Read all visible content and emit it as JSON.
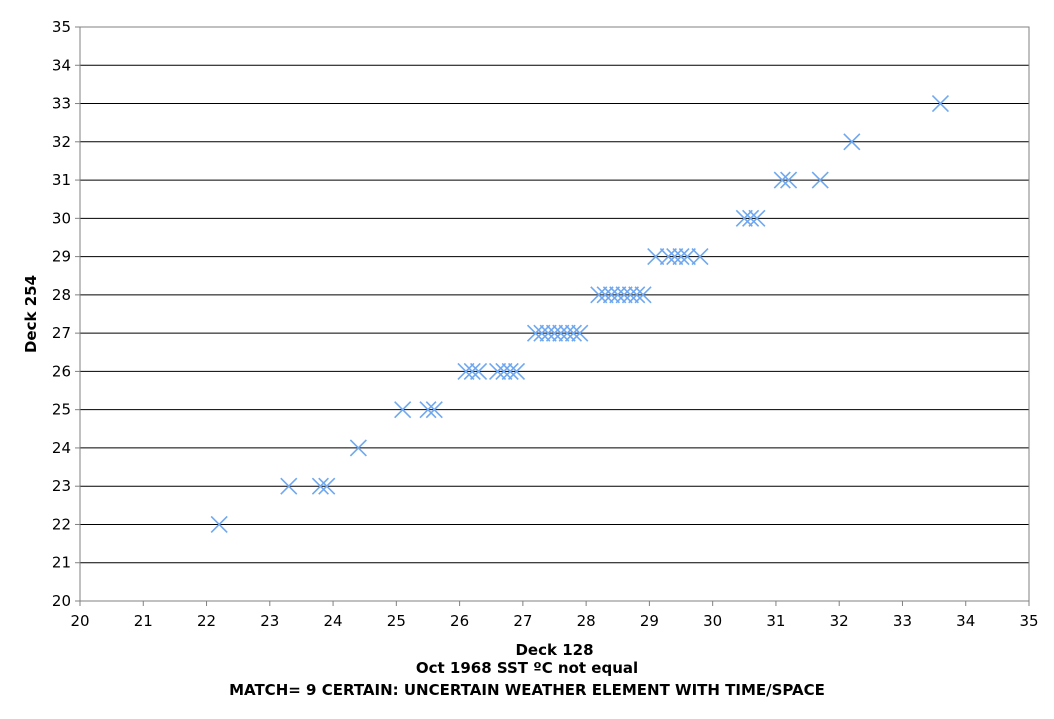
{
  "chart_data": {
    "type": "scatter",
    "xlabel": "Deck 128",
    "ylabel": "Deck 254",
    "subtitle": "Oct 1968 SST ºC not equal",
    "caption": "MATCH= 9 CERTAIN: UNCERTAIN WEATHER ELEMENT WITH TIME/SPACE",
    "xlim": [
      20,
      35
    ],
    "ylim": [
      20,
      35
    ],
    "xticks": [
      "20",
      "21",
      "22",
      "23",
      "24",
      "25",
      "26",
      "27",
      "28",
      "29",
      "30",
      "31",
      "32",
      "33",
      "34",
      "35"
    ],
    "yticks": [
      "20",
      "21",
      "22",
      "23",
      "24",
      "25",
      "26",
      "27",
      "28",
      "29",
      "30",
      "31",
      "32",
      "33",
      "34",
      "35"
    ],
    "grid": "horizontal",
    "legend": "none",
    "marker": "x",
    "marker_color": "#6fa8f0",
    "points": [
      [
        22.2,
        22
      ],
      [
        23.3,
        23
      ],
      [
        23.8,
        23
      ],
      [
        23.9,
        23
      ],
      [
        24.4,
        24
      ],
      [
        25.1,
        25
      ],
      [
        25.5,
        25
      ],
      [
        25.6,
        25
      ],
      [
        26.1,
        26
      ],
      [
        26.2,
        26
      ],
      [
        26.3,
        26
      ],
      [
        26.6,
        26
      ],
      [
        26.7,
        26
      ],
      [
        26.8,
        26
      ],
      [
        26.9,
        26
      ],
      [
        27.2,
        27
      ],
      [
        27.3,
        27
      ],
      [
        27.4,
        27
      ],
      [
        27.5,
        27
      ],
      [
        27.6,
        27
      ],
      [
        27.7,
        27
      ],
      [
        27.8,
        27
      ],
      [
        27.9,
        27
      ],
      [
        28.2,
        28
      ],
      [
        28.3,
        28
      ],
      [
        28.4,
        28
      ],
      [
        28.5,
        28
      ],
      [
        28.6,
        28
      ],
      [
        28.7,
        28
      ],
      [
        28.8,
        28
      ],
      [
        28.9,
        28
      ],
      [
        29.1,
        29
      ],
      [
        29.3,
        29
      ],
      [
        29.4,
        29
      ],
      [
        29.5,
        29
      ],
      [
        29.6,
        29
      ],
      [
        29.8,
        29
      ],
      [
        30.5,
        30
      ],
      [
        30.6,
        30
      ],
      [
        30.7,
        30
      ],
      [
        31.1,
        31
      ],
      [
        31.2,
        31
      ],
      [
        31.7,
        31
      ],
      [
        32.2,
        32
      ],
      [
        33.6,
        33
      ]
    ]
  }
}
